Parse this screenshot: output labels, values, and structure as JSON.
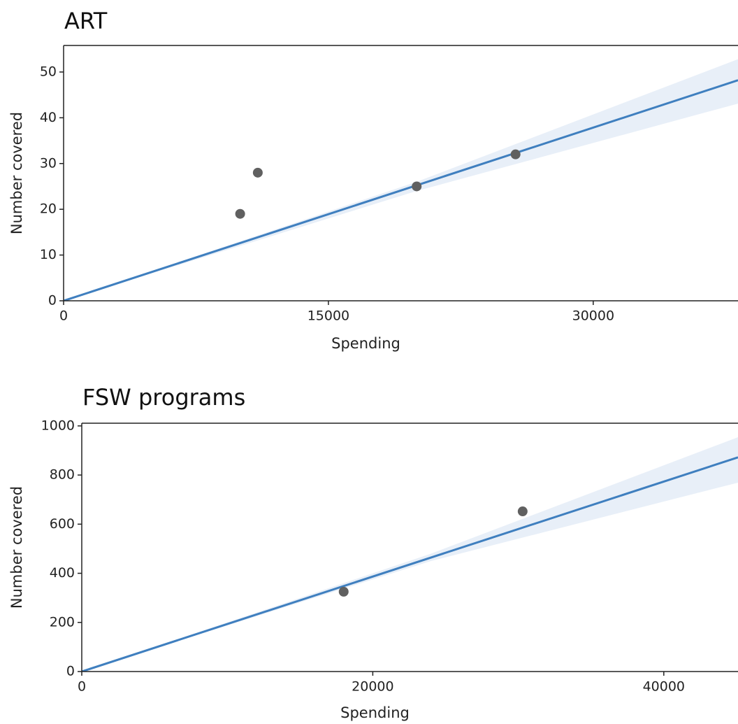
{
  "chart_data": [
    {
      "type": "scatter",
      "title": "ART",
      "x_label": "Spending",
      "y_label": "Number covered",
      "x": [
        10000,
        11000,
        20000,
        25600
      ],
      "values": [
        19,
        28,
        25,
        32
      ],
      "color": "#606060",
      "fit": {
        "x": [
          0,
          38200
        ],
        "values": [
          0,
          48.2
        ],
        "color": "#3f7fbf"
      },
      "band": {
        "x": [
          0,
          20000,
          38200
        ],
        "lower": [
          0,
          24,
          43.1
        ],
        "upper": [
          0,
          26,
          52.8
        ],
        "color": "#e8eff8"
      },
      "xlim": [
        0,
        38200
      ],
      "ylim": [
        0,
        55.8
      ],
      "xticks": [
        0,
        15000,
        30000
      ],
      "yticks": [
        0,
        10,
        20,
        30,
        40,
        50
      ],
      "grid": false
    },
    {
      "type": "scatter",
      "title": "FSW programs",
      "x_label": "Spending",
      "y_label": "Number covered",
      "x": [
        18000,
        30300
      ],
      "values": [
        325,
        652
      ],
      "color": "#606060",
      "fit": {
        "x": [
          0,
          45100
        ],
        "values": [
          0,
          872
        ],
        "color": "#3f7fbf"
      },
      "band": {
        "x": [
          0,
          24000,
          45100
        ],
        "lower": [
          0,
          450,
          769
        ],
        "upper": [
          0,
          480,
          954
        ],
        "color": "#e8eff8"
      },
      "xlim": [
        0,
        45100
      ],
      "ylim": [
        0,
        1011
      ],
      "xticks": [
        0,
        20000,
        40000
      ],
      "yticks": [
        0,
        200,
        400,
        600,
        800,
        1000
      ],
      "grid": false
    }
  ]
}
